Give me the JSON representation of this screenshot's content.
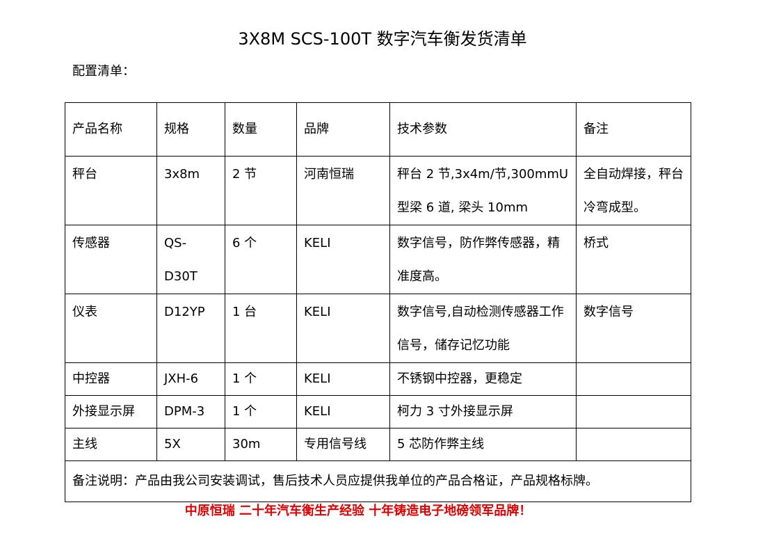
{
  "title": "3X8M SCS-100T 数字汽车衡发货清单",
  "subtitle": "配置清单：",
  "table": {
    "headers": [
      "产品名称",
      "规格",
      "数量",
      "品牌",
      "技术参数",
      "备注"
    ],
    "rows": [
      [
        "秤台",
        "3x8m",
        "2 节",
        "河南恒瑞",
        "秤台 2 节,3x4m/节,300mmU型梁 6 道, 梁头 10mm",
        "全自动焊接，秤台冷弯成型。"
      ],
      [
        "传感器",
        "QS-D30T",
        "6 个",
        "KELI",
        "数字信号，防作弊传感器，精准度高。",
        "桥式"
      ],
      [
        "仪表",
        "D12YP",
        "1 台",
        "KELI",
        "数字信号,自动检测传感器工作信号，储存记忆功能",
        "数字信号"
      ],
      [
        "中控器",
        "JXH-6",
        "1 个",
        "KELI",
        "不锈钢中控器，更稳定",
        ""
      ],
      [
        "外接显示屏",
        "DPM-3",
        "1 个",
        "KELI",
        "柯力 3 寸外接显示屏",
        ""
      ],
      [
        "主线",
        "5X",
        "30m",
        "专用信号线",
        "5 芯防作弊主线",
        ""
      ]
    ],
    "note": "备注说明：产品由我公司安装调试，售后技术人员应提供我单位的产品合格证，产品规格标牌。"
  },
  "slogan": "中原恒瑞 二十年汽车衡生产经验 十年铸造电子地磅领军品牌！",
  "colors": {
    "slogan": "#e00000"
  }
}
